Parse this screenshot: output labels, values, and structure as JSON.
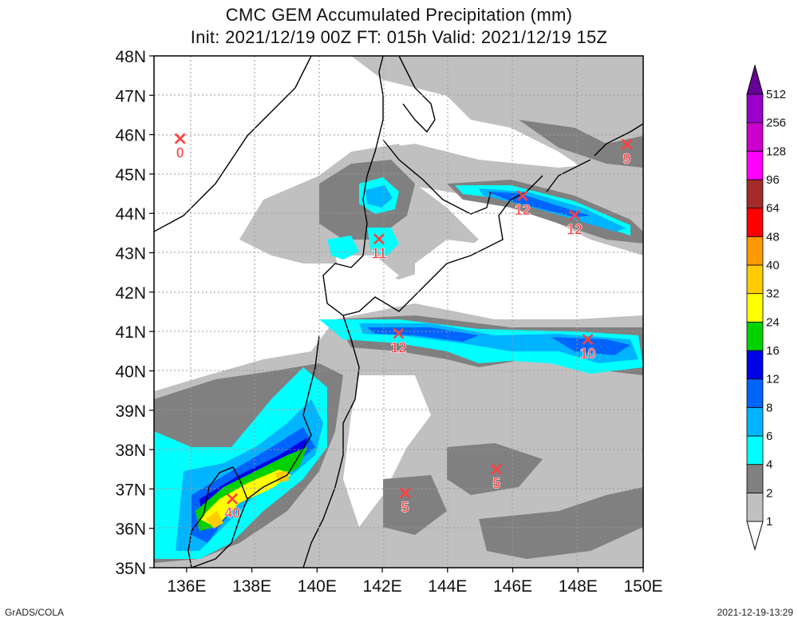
{
  "title_line1": "CMC GEM Accumulated Precipitation (mm)",
  "title_line2": "Init: 2021/12/19 00Z  FT: 015h  Valid: 2021/12/19 15Z",
  "lat_labels": [
    "35N",
    "36N",
    "37N",
    "38N",
    "39N",
    "40N",
    "41N",
    "42N",
    "43N",
    "44N",
    "45N",
    "46N",
    "47N",
    "48N"
  ],
  "lon_labels": [
    "136E",
    "138E",
    "140E",
    "142E",
    "144E",
    "146E",
    "148E",
    "150E"
  ],
  "colorbar": {
    "levels": [
      "1",
      "2",
      "4",
      "6",
      "8",
      "12",
      "16",
      "24",
      "32",
      "40",
      "48",
      "64",
      "96",
      "128",
      "256",
      "512"
    ],
    "colors": [
      "#ffffff",
      "#c0c0c0",
      "#808080",
      "#00ffff",
      "#00b4ff",
      "#0064ff",
      "#0000e6",
      "#00d200",
      "#ffff00",
      "#ffcc00",
      "#ff9900",
      "#ff0000",
      "#a52a2a",
      "#ff00ff",
      "#cc00cc",
      "#9900cc",
      "#660099"
    ]
  },
  "markers": [
    {
      "value": "0",
      "lon": 135.8,
      "lat": 45.9
    },
    {
      "value": "9",
      "lon": 149.5,
      "lat": 45.75
    },
    {
      "value": "12",
      "lon": 146.3,
      "lat": 44.45
    },
    {
      "value": "12",
      "lon": 147.9,
      "lat": 43.95
    },
    {
      "value": "11",
      "lon": 141.9,
      "lat": 43.35
    },
    {
      "value": "12",
      "lon": 142.5,
      "lat": 40.95
    },
    {
      "value": "10",
      "lon": 148.3,
      "lat": 40.8
    },
    {
      "value": "5",
      "lon": 145.5,
      "lat": 37.5
    },
    {
      "value": "5",
      "lon": 142.7,
      "lat": 36.9
    },
    {
      "value": "40",
      "lon": 137.4,
      "lat": 36.75
    }
  ],
  "footer_left": "GrADS/COLA",
  "footer_right": "2021-12-19-13:29"
}
